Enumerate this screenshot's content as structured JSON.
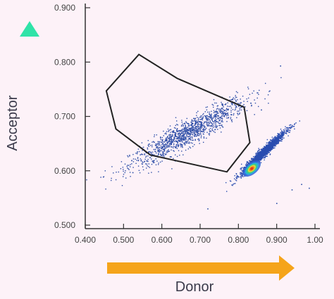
{
  "chart_data": {
    "type": "scatter",
    "title": "",
    "xlabel": "Donor",
    "ylabel": "Acceptor",
    "xlim": [
      0.4,
      1.0
    ],
    "ylim": [
      0.5,
      0.9
    ],
    "x_ticks": [
      {
        "value": 0.4,
        "label": "0.400"
      },
      {
        "value": 0.5,
        "label": "0.500"
      },
      {
        "value": 0.6,
        "label": "0.600"
      },
      {
        "value": 0.7,
        "label": "0.700"
      },
      {
        "value": 0.8,
        "label": "0.800"
      },
      {
        "value": 0.9,
        "label": "0.900"
      },
      {
        "value": 1.0,
        "label": "1.00"
      }
    ],
    "y_ticks": [
      {
        "value": 0.5,
        "label": "0.500"
      },
      {
        "value": 0.6,
        "label": "0.600"
      },
      {
        "value": 0.7,
        "label": "0.700"
      },
      {
        "value": 0.8,
        "label": "0.800"
      },
      {
        "value": 0.9,
        "label": "0.900"
      }
    ],
    "grid": false,
    "gate_polygon": [
      [
        0.54,
        0.814
      ],
      [
        0.455,
        0.747
      ],
      [
        0.48,
        0.677
      ],
      [
        0.57,
        0.629
      ],
      [
        0.77,
        0.598
      ],
      [
        0.83,
        0.652
      ],
      [
        0.815,
        0.717
      ],
      [
        0.64,
        0.77
      ]
    ],
    "populations": [
      {
        "name_hidden": true,
        "center": [
          0.67,
          0.67
        ],
        "spread_x": 0.085,
        "spread_y": 0.035,
        "correlation": 0.92,
        "count": 1300,
        "color": "#2f4fa8"
      },
      {
        "name_hidden": true,
        "center": [
          0.865,
          0.633
        ],
        "spread_x": 0.032,
        "spread_y": 0.022,
        "correlation": 0.97,
        "count": 1700,
        "color": "#2a4db0"
      }
    ],
    "density_core": {
      "center": [
        0.835,
        0.604
      ],
      "colors": [
        "#2f66d8",
        "#27b3d9",
        "#45d07a",
        "#e8d83a",
        "#f08a1e",
        "#e2321c"
      ]
    },
    "colors": {
      "axis": "#333333",
      "gate": "#222222",
      "acceptor_arrow": "#2fe3a8",
      "donor_arrow": "#f5a41a"
    }
  }
}
